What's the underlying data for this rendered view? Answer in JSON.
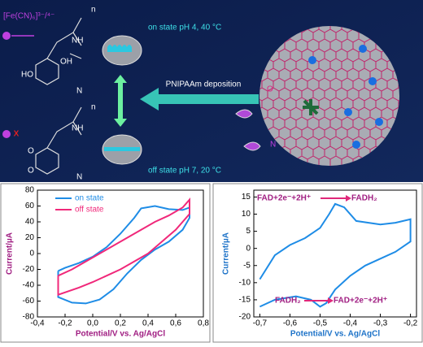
{
  "diagram": {
    "ion_label": "[Fe(CN)₆]³⁻/⁴⁻",
    "on_state": "on state pH 4, 40 °C",
    "off_state": "off state pH 7, 20 °C",
    "deposition": "PNIPAAm deposition",
    "atoms": [
      "n",
      "NH",
      "OH",
      "HO",
      "N",
      "n",
      "NH",
      "O",
      "O",
      "N",
      "O",
      "N"
    ]
  },
  "chart_data": [
    {
      "type": "line",
      "xlabel": "Potential/V vs. Ag/AgCl",
      "ylabel": "Current/µA",
      "label_color": "#a01e82",
      "xlim": [
        -0.4,
        0.8
      ],
      "ylim": [
        -80,
        80
      ],
      "xticks": [
        {
          "value": -0.4,
          "label": "-0,4"
        },
        {
          "value": -0.2,
          "label": "-0,2"
        },
        {
          "value": 0,
          "label": "0,0"
        },
        {
          "value": 0.2,
          "label": "0,2"
        },
        {
          "value": 0.4,
          "label": "0,4"
        },
        {
          "value": 0.6,
          "label": "0,6"
        },
        {
          "value": 0.8,
          "label": "0,8"
        }
      ],
      "yticks": [
        -80,
        -60,
        -40,
        -20,
        0,
        20,
        40,
        60,
        80
      ],
      "legend": "upper-left",
      "series": [
        {
          "name": "on state",
          "color": "#1e8ce6",
          "x": [
            -0.25,
            -0.2,
            -0.1,
            0,
            0.1,
            0.2,
            0.3,
            0.35,
            0.45,
            0.55,
            0.65,
            0.7,
            0.7,
            0.65,
            0.55,
            0.45,
            0.35,
            0.25,
            0.15,
            0.05,
            -0.05,
            -0.15,
            -0.25,
            -0.25
          ],
          "values": [
            -22,
            -18,
            -12,
            -4,
            8,
            25,
            45,
            57,
            60,
            56,
            55,
            58,
            45,
            30,
            15,
            5,
            -8,
            -25,
            -45,
            -58,
            -63,
            -62,
            -55,
            -22
          ]
        },
        {
          "name": "off state",
          "color": "#f0287a",
          "x": [
            -0.25,
            -0.15,
            -0.05,
            0.05,
            0.15,
            0.25,
            0.35,
            0.45,
            0.55,
            0.65,
            0.7,
            0.7,
            0.6,
            0.5,
            0.4,
            0.3,
            0.2,
            0.1,
            0,
            -0.1,
            -0.25,
            -0.25
          ],
          "values": [
            -28,
            -20,
            -10,
            0,
            10,
            20,
            30,
            40,
            48,
            58,
            68,
            50,
            30,
            15,
            0,
            -10,
            -20,
            -28,
            -36,
            -43,
            -52,
            -28
          ]
        }
      ]
    },
    {
      "type": "line",
      "xlabel": "Potential/V vs. Ag/AgCl",
      "ylabel": "Current/µA",
      "label_color": "#1e73c8",
      "xlim": [
        -0.72,
        -0.18
      ],
      "ylim": [
        -20,
        17
      ],
      "xticks": [
        {
          "value": -0.7,
          "label": "-0,7"
        },
        {
          "value": -0.6,
          "label": "-0,6"
        },
        {
          "value": -0.5,
          "label": "-0,5"
        },
        {
          "value": -0.4,
          "label": "-0,4"
        },
        {
          "value": -0.3,
          "label": "-0,3"
        },
        {
          "value": -0.2,
          "label": "-0,2"
        }
      ],
      "yticks": [
        -20,
        -15,
        -10,
        -5,
        0,
        5,
        10,
        15
      ],
      "annotations": [
        "FAD+2e⁻+2H⁺",
        "FADH₂",
        "FADH₂",
        "FAD+2e⁻+2H⁺"
      ],
      "series": [
        {
          "color": "#1e8ce6",
          "x": [
            -0.7,
            -0.65,
            -0.6,
            -0.55,
            -0.5,
            -0.47,
            -0.45,
            -0.42,
            -0.38,
            -0.3,
            -0.25,
            -0.2,
            -0.2,
            -0.25,
            -0.3,
            -0.35,
            -0.4,
            -0.45,
            -0.48,
            -0.5,
            -0.53,
            -0.58,
            -0.65,
            -0.7
          ],
          "values": [
            -9,
            -2,
            1,
            3,
            6,
            10,
            13,
            12,
            8,
            7,
            7.5,
            8.5,
            2,
            -1,
            -3,
            -5,
            -8,
            -12,
            -16,
            -17,
            -15,
            -14,
            -15,
            -17
          ]
        }
      ]
    }
  ]
}
